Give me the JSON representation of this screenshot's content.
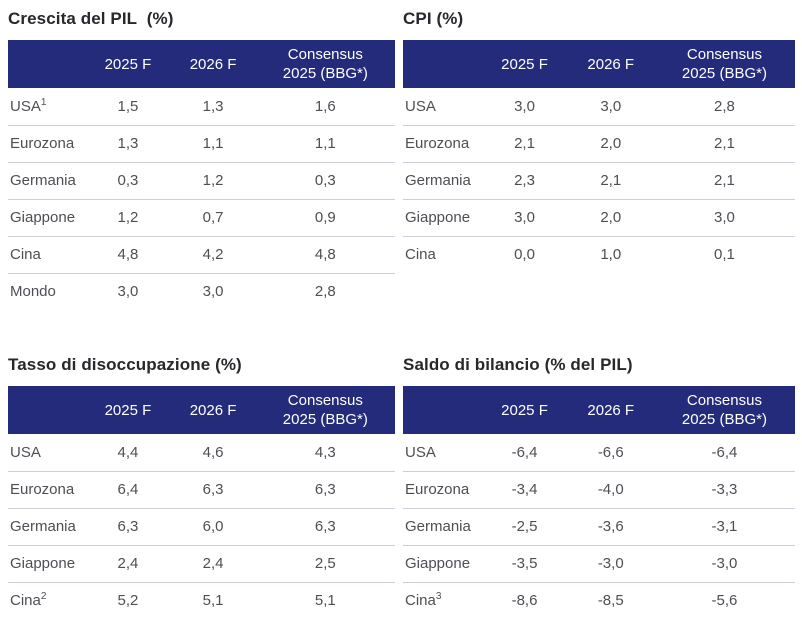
{
  "colors": {
    "header-bg": "#232b7a",
    "header-fg": "#ffffff",
    "title-fg": "#26282c",
    "body-fg": "#4c4f54",
    "divider": "#cbd0d8"
  },
  "columns": [
    "2025 F",
    "2026 F",
    "Consensus\n2025 (BBG*)"
  ],
  "tables": [
    {
      "title": "Crescita del PIL  (%)",
      "rows": [
        {
          "label": "USA",
          "sup": "1",
          "values": [
            "1,5",
            "1,3",
            "1,6"
          ]
        },
        {
          "label": "Eurozona",
          "sup": "",
          "values": [
            "1,3",
            "1,1",
            "1,1"
          ]
        },
        {
          "label": "Germania",
          "sup": "",
          "values": [
            "0,3",
            "1,2",
            "0,3"
          ]
        },
        {
          "label": "Giappone",
          "sup": "",
          "values": [
            "1,2",
            "0,7",
            "0,9"
          ]
        },
        {
          "label": "Cina",
          "sup": "",
          "values": [
            "4,8",
            "4,2",
            "4,8"
          ]
        },
        {
          "label": "Mondo",
          "sup": "",
          "values": [
            "3,0",
            "3,0",
            "2,8"
          ]
        }
      ]
    },
    {
      "title": "CPI (%)",
      "rows": [
        {
          "label": "USA",
          "sup": "",
          "values": [
            "3,0",
            "3,0",
            "2,8"
          ]
        },
        {
          "label": "Eurozona",
          "sup": "",
          "values": [
            "2,1",
            "2,0",
            "2,1"
          ]
        },
        {
          "label": "Germania",
          "sup": "",
          "values": [
            "2,3",
            "2,1",
            "2,1"
          ]
        },
        {
          "label": "Giappone",
          "sup": "",
          "values": [
            "3,0",
            "2,0",
            "3,0"
          ]
        },
        {
          "label": "Cina",
          "sup": "",
          "values": [
            "0,0",
            "1,0",
            "0,1"
          ]
        }
      ]
    },
    {
      "title": "Tasso di disoccupazione (%)",
      "rows": [
        {
          "label": "USA",
          "sup": "",
          "values": [
            "4,4",
            "4,6",
            "4,3"
          ]
        },
        {
          "label": "Eurozona",
          "sup": "",
          "values": [
            "6,4",
            "6,3",
            "6,3"
          ]
        },
        {
          "label": "Germania",
          "sup": "",
          "values": [
            "6,3",
            "6,0",
            "6,3"
          ]
        },
        {
          "label": "Giappone",
          "sup": "",
          "values": [
            "2,4",
            "2,4",
            "2,5"
          ]
        },
        {
          "label": "Cina",
          "sup": "2",
          "values": [
            "5,2",
            "5,1",
            "5,1"
          ]
        }
      ]
    },
    {
      "title": "Saldo di bilancio (% del PIL)",
      "rows": [
        {
          "label": "USA",
          "sup": "",
          "values": [
            "-6,4",
            "-6,6",
            "-6,4"
          ]
        },
        {
          "label": "Eurozona",
          "sup": "",
          "values": [
            "-3,4",
            "-4,0",
            "-3,3"
          ]
        },
        {
          "label": "Germania",
          "sup": "",
          "values": [
            "-2,5",
            "-3,6",
            "-3,1"
          ]
        },
        {
          "label": "Giappone",
          "sup": "",
          "values": [
            "-3,5",
            "-3,0",
            "-3,0"
          ]
        },
        {
          "label": "Cina",
          "sup": "3",
          "values": [
            "-8,6",
            "-8,5",
            "-5,6"
          ]
        }
      ]
    }
  ]
}
